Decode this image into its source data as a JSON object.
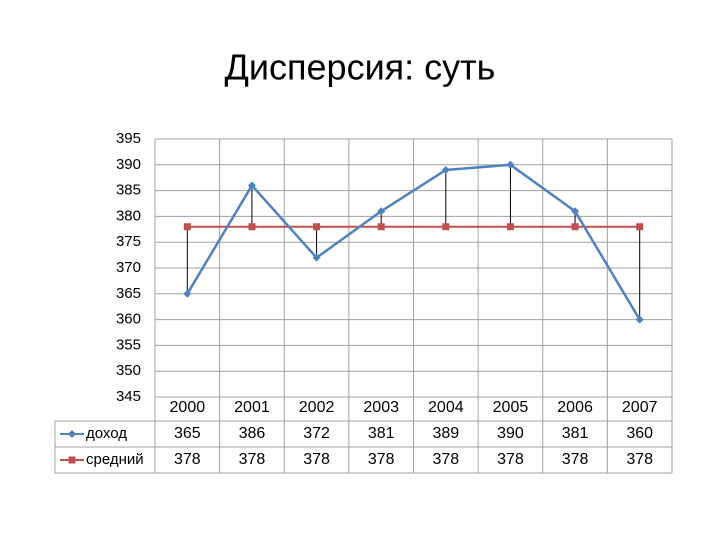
{
  "chart_data": {
    "type": "line",
    "title": "Дисперсия: суть",
    "categories": [
      "2000",
      "2001",
      "2002",
      "2003",
      "2004",
      "2005",
      "2006",
      "2007"
    ],
    "series": [
      {
        "name": "доход",
        "color": "#4f81bd",
        "values": [
          365,
          386,
          372,
          381,
          389,
          390,
          381,
          360
        ]
      },
      {
        "name": "средний",
        "color": "#c0504d",
        "values": [
          378,
          378,
          378,
          378,
          378,
          378,
          378,
          378
        ]
      }
    ],
    "ylim": [
      345,
      395
    ],
    "yticks": [
      345,
      350,
      355,
      360,
      365,
      370,
      375,
      380,
      385,
      390,
      395
    ],
    "grid": true,
    "drop_lines": true
  }
}
